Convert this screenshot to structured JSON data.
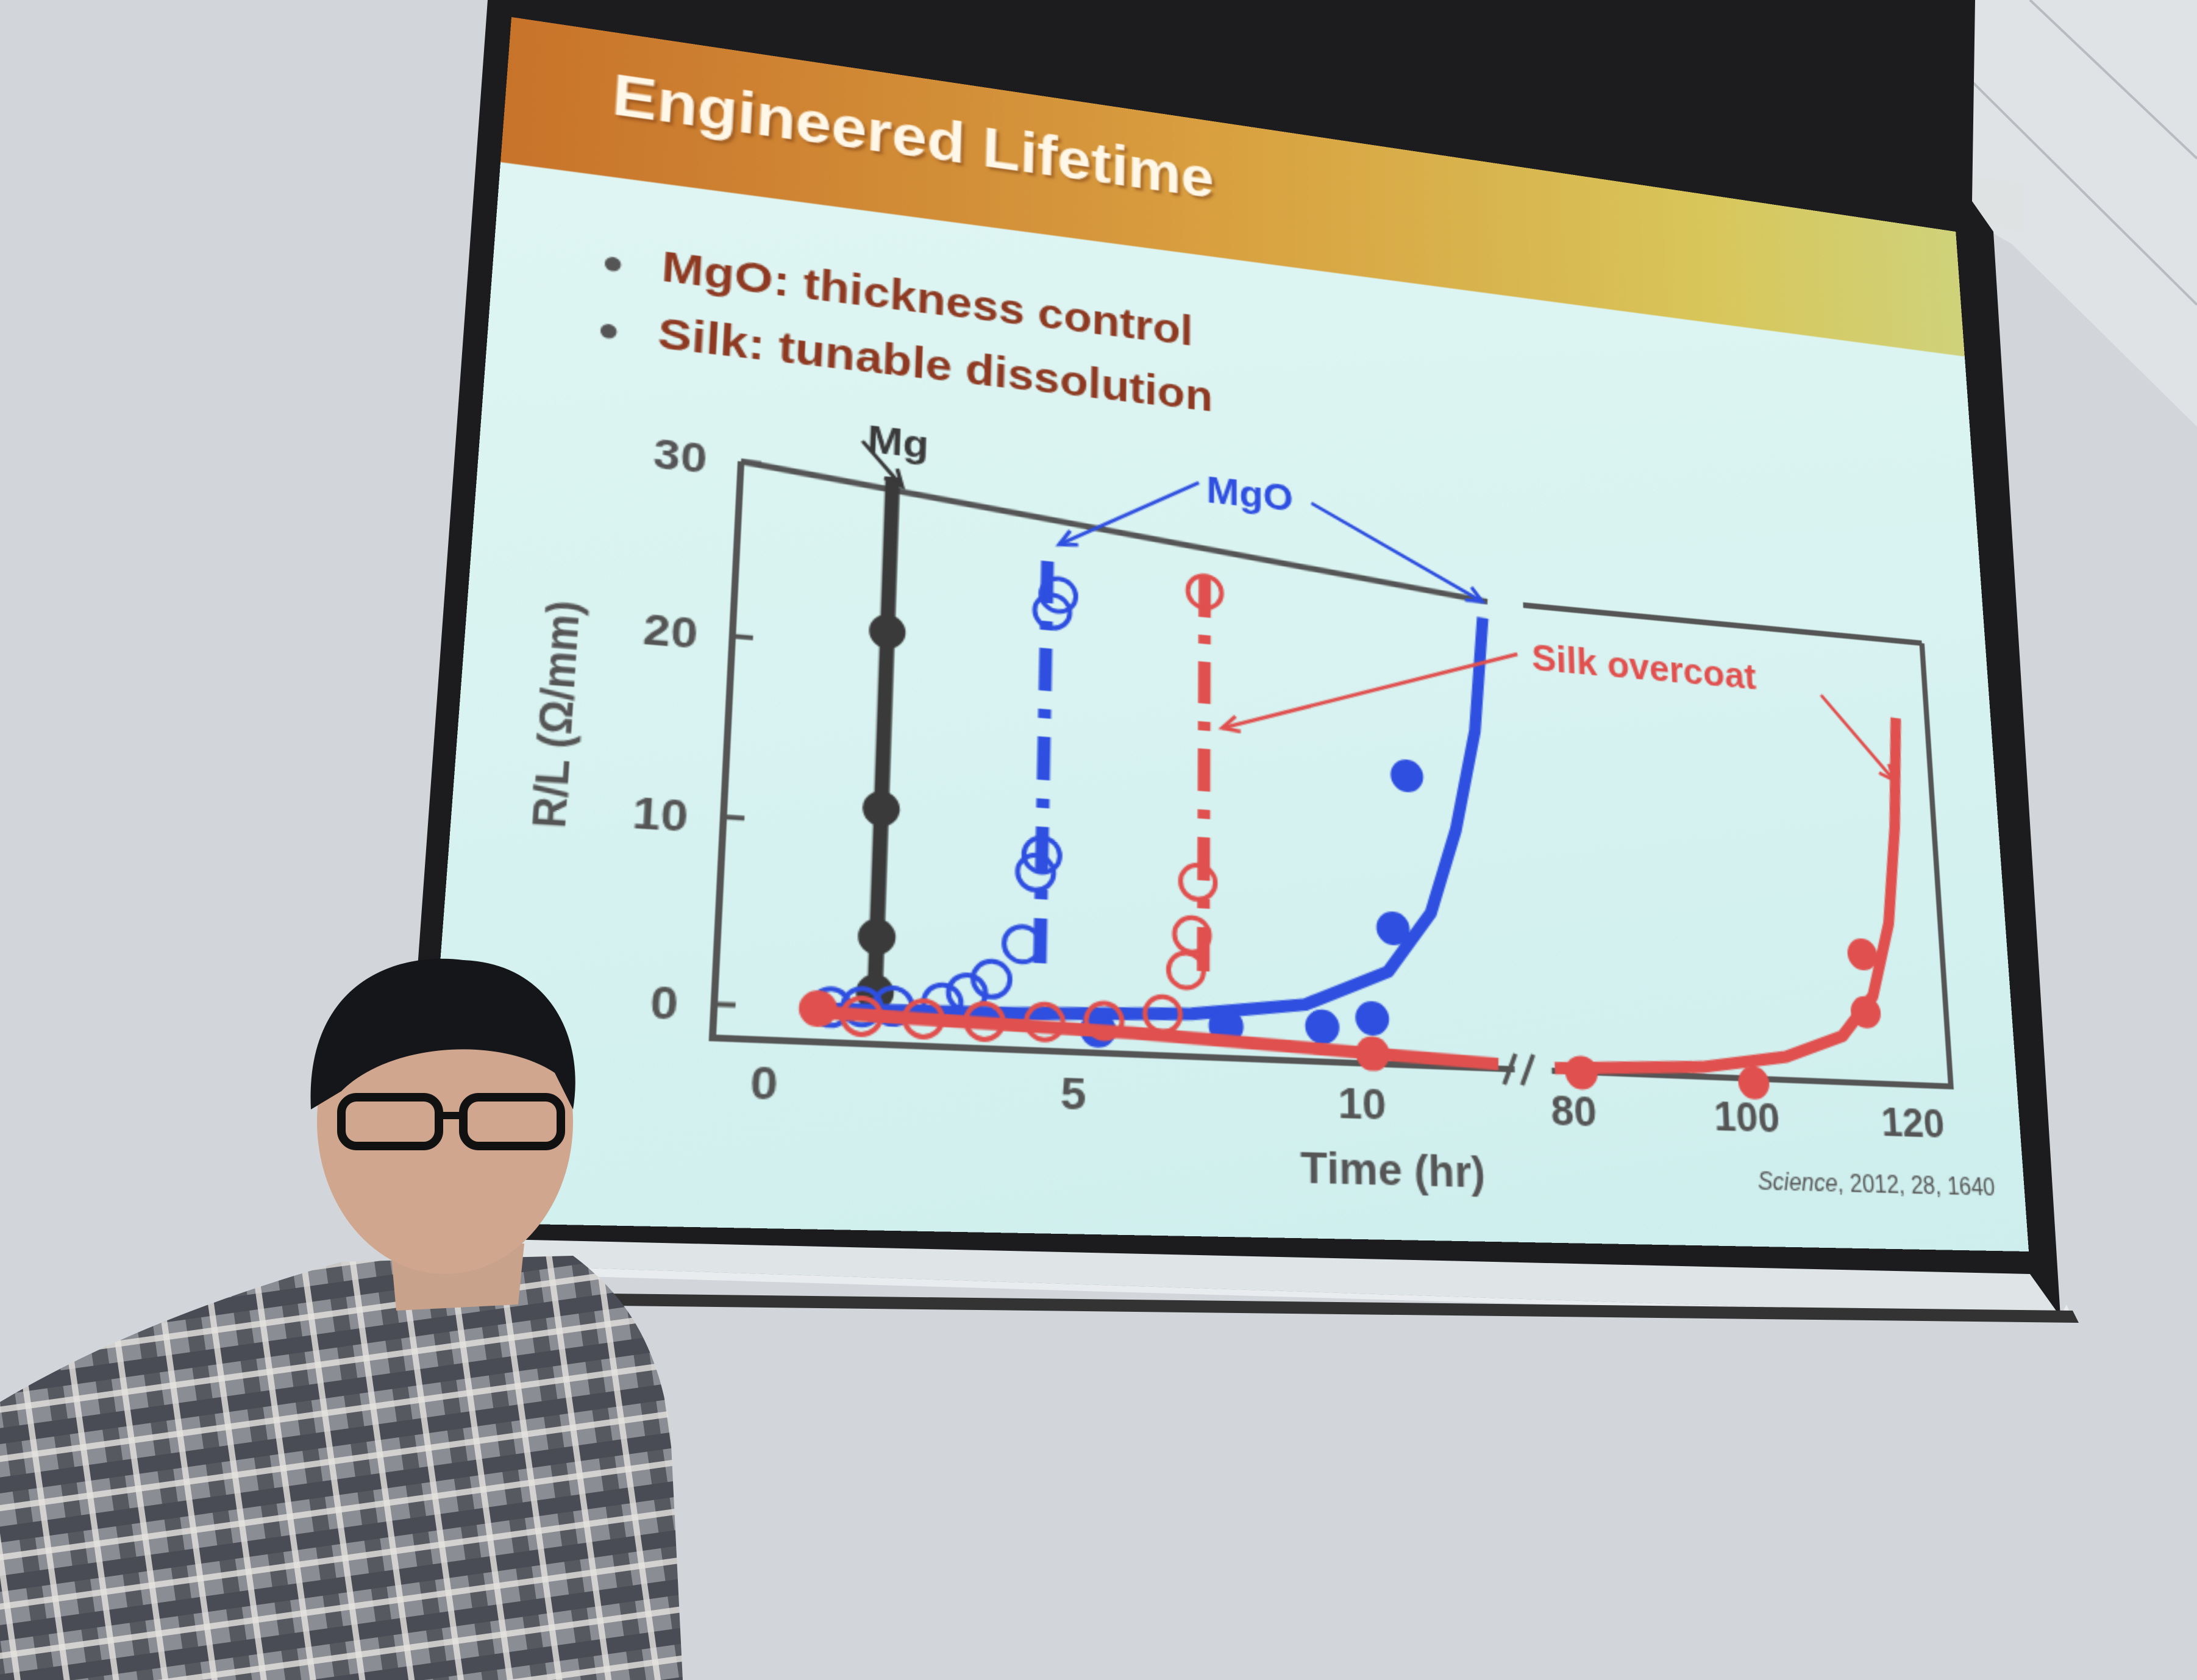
{
  "slide": {
    "title": "Engineered Lifetime",
    "bullets": [
      "MgO: thickness control",
      "Silk: tunable dissolution"
    ],
    "citation_journal": "Science",
    "citation_rest": ", 2012, 28, 1640"
  },
  "colors": {
    "mg": "#3a3a3a",
    "mgo": "#2e4fe0",
    "silk": "#e0504e",
    "band_left": "#c8732a",
    "band_right": "#cfd27a",
    "text": "#8e3a22"
  },
  "chart_data": {
    "type": "scatter",
    "xlabel": "Time (hr)",
    "ylabel": "R/L (Ω/mm)",
    "x_ticks": [
      "0",
      "5",
      "10",
      "80",
      "100",
      "120"
    ],
    "y_ticks": [
      "0",
      "10",
      "20",
      "30"
    ],
    "ylim": [
      0,
      30
    ],
    "x_broken_axis": [
      [
        0,
        12.5
      ],
      [
        75,
        125
      ]
    ],
    "annotations": {
      "mg": "Mg",
      "mgo": "MgO",
      "silk": "Silk overcoat"
    },
    "series": [
      {
        "name": "Mg",
        "color": "#3a3a3a",
        "marker": "filled",
        "line": "solid-vertical",
        "line_x": 1.7,
        "points": [
          [
            1.7,
            1
          ],
          [
            1.7,
            4
          ],
          [
            1.7,
            11
          ],
          [
            1.7,
            21
          ]
        ]
      },
      {
        "name": "MgO",
        "color": "#2e4fe0",
        "marker": "open",
        "line": "dash-dot-vertical",
        "line_x": 4.4,
        "points": [
          [
            1,
            0.1
          ],
          [
            1.5,
            0.2
          ],
          [
            2,
            0.3
          ],
          [
            2.8,
            0.6
          ],
          [
            3.2,
            1.2
          ],
          [
            3.6,
            2
          ],
          [
            4.1,
            4
          ],
          [
            4.3,
            8
          ],
          [
            4.4,
            9
          ],
          [
            4.5,
            23
          ],
          [
            4.6,
            24
          ]
        ]
      },
      {
        "name": "MgO",
        "color": "#2e4fe0",
        "marker": "filled",
        "line": "solid-curve",
        "points": [
          [
            5.4,
            -0.5
          ],
          [
            7.6,
            0
          ],
          [
            9.3,
            0.2
          ],
          [
            10.2,
            0.8
          ],
          [
            10.6,
            6
          ],
          [
            10.9,
            15
          ]
        ],
        "curve": [
          [
            1,
            0
          ],
          [
            4,
            0.2
          ],
          [
            7,
            0.6
          ],
          [
            9,
            1.4
          ],
          [
            10.5,
            3.5
          ],
          [
            11.3,
            7
          ],
          [
            11.8,
            12
          ],
          [
            12.2,
            18
          ],
          [
            12.4,
            25
          ]
        ]
      },
      {
        "name": "Silk overcoat",
        "color": "#e0504e",
        "marker": "open",
        "line": "dash-dot-vertical",
        "line_x": 7.2,
        "points": [
          [
            1.5,
            -0.3
          ],
          [
            2.5,
            -0.3
          ],
          [
            3.5,
            -0.3
          ],
          [
            4.5,
            -0.2
          ],
          [
            5.5,
            0
          ],
          [
            6.5,
            0.5
          ],
          [
            6.9,
            3
          ],
          [
            7.0,
            5
          ],
          [
            7.1,
            8
          ],
          [
            7.2,
            25
          ]
        ]
      },
      {
        "name": "Silk overcoat",
        "color": "#e0504e",
        "marker": "filled",
        "line": "solid-curve",
        "points": [
          [
            0.8,
            0
          ],
          [
            10.2,
            -1.2
          ],
          [
            81,
            -1.8
          ],
          [
            101,
            -2
          ],
          [
            115,
            2.5
          ],
          [
            115,
            6
          ]
        ],
        "curve": [
          [
            1,
            -0.2
          ],
          [
            6,
            -0.6
          ],
          [
            12.5,
            -1.5
          ],
          [
            78,
            -1.6
          ],
          [
            95,
            -1.2
          ],
          [
            105,
            -0.4
          ],
          [
            112,
            1
          ],
          [
            116,
            3.5
          ],
          [
            118.5,
            8
          ],
          [
            120,
            14
          ],
          [
            121,
            21
          ]
        ]
      }
    ]
  }
}
